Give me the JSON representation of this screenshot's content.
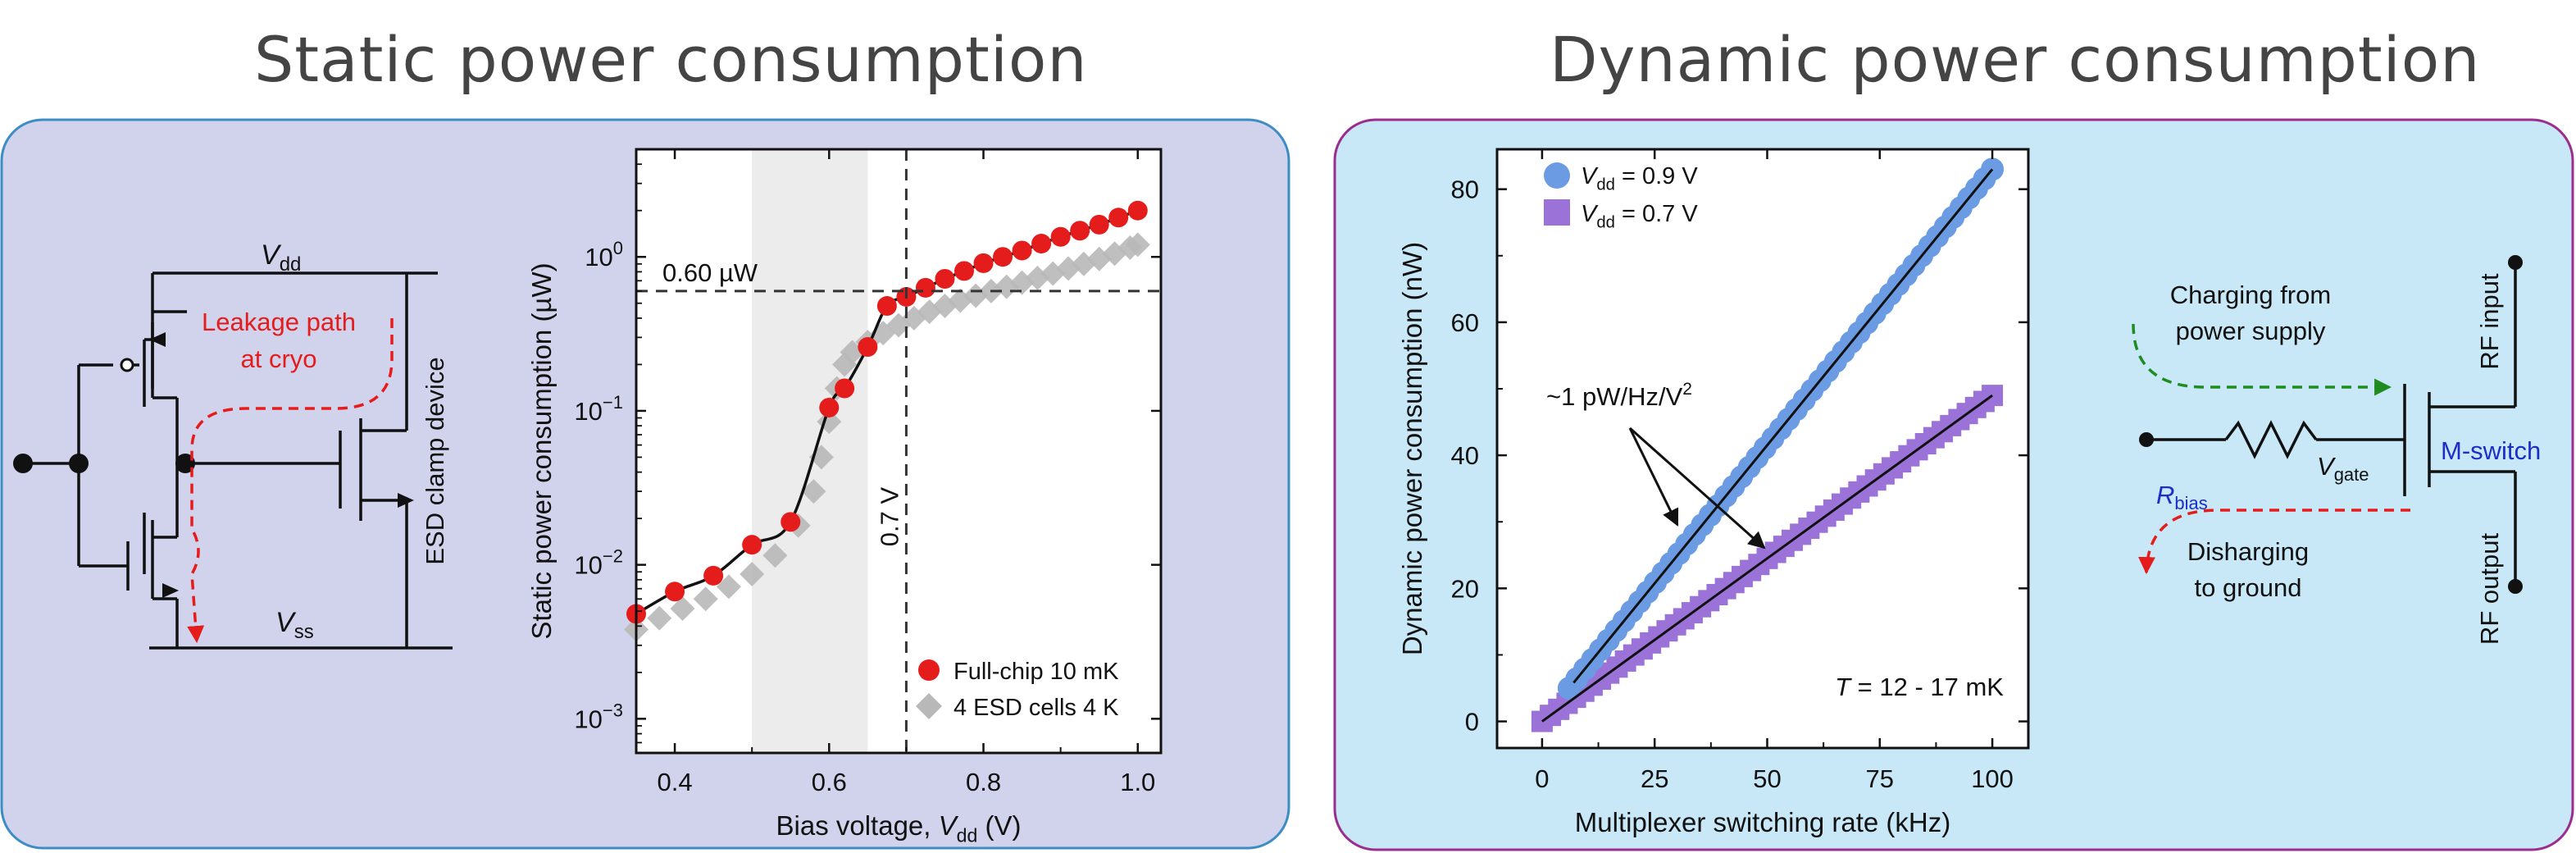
{
  "static": {
    "title": "Static power consumption",
    "colors": {
      "panel_bg": "#d1d3ec",
      "panel_border": "#3d8dc4",
      "red": "#e51c1c",
      "grey": "#b8b8b8",
      "shade": "#ececec"
    },
    "circuit": {
      "vdd_label": "V",
      "vdd_sub": "dd",
      "vss_label": "V",
      "vss_sub": "ss",
      "leakage_line1": "Leakage path",
      "leakage_line2": "at cryo",
      "esd_label": "ESD clamp device"
    },
    "annotations": {
      "power_line": "0.60 µW",
      "voltage_line": "0.7 V"
    }
  },
  "dynamic": {
    "title": "Dynamic power consumption",
    "colors": {
      "panel_bg": "#c8e8f8",
      "panel_border": "#9b2d8e",
      "blue": "#6b9be3",
      "purple": "#9b72d8"
    },
    "annotations": {
      "slope": "~1 pW/Hz/V",
      "slope_sup": "2",
      "temperature_italic": "T",
      "temperature_rest": " = 12 - 17 mK"
    },
    "switch": {
      "charging_line1": "Charging from",
      "charging_line2": "power supply",
      "discharging_line1": "Disharging",
      "discharging_line2": "to ground",
      "rf_input": "RF input",
      "rf_output": "RF output",
      "mswitch": "M-switch",
      "vgate_label": "V",
      "vgate_sub": "gate",
      "rbias_label": "R",
      "rbias_sub": "bias"
    }
  },
  "chart_data": [
    {
      "type": "scatter",
      "title": "",
      "xlabel": "Bias voltage, V_dd (V)",
      "ylabel": "Static power consumption (µW)",
      "xlabel_parts": [
        "Bias voltage, ",
        "V",
        "dd",
        " (V)"
      ],
      "yscale": "log",
      "xlim": [
        0.35,
        1.03
      ],
      "ylim": [
        0.0006,
        5
      ],
      "x_ticks": [
        0.4,
        0.6,
        0.8,
        1.0
      ],
      "x_tick_labels": [
        "0.4",
        "0.6",
        "0.8",
        "1.0"
      ],
      "y_ticks": [
        0.001,
        0.01,
        0.1,
        1
      ],
      "y_tick_labels": [
        [
          "10",
          "−3"
        ],
        [
          "10",
          "−2"
        ],
        [
          "10",
          "−1"
        ],
        [
          "10",
          "0"
        ]
      ],
      "shaded_region": [
        0.5,
        0.65
      ],
      "hline": 0.6,
      "vline": 0.7,
      "legend_position": "lower right",
      "series": [
        {
          "name": "Full-chip 10 mK",
          "marker": "circle",
          "x": [
            0.35,
            0.4,
            0.45,
            0.5,
            0.55,
            0.6,
            0.62,
            0.65,
            0.675,
            0.7,
            0.725,
            0.75,
            0.775,
            0.8,
            0.825,
            0.85,
            0.875,
            0.9,
            0.925,
            0.95,
            0.975,
            1.0
          ],
          "y": [
            0.0048,
            0.0067,
            0.0085,
            0.0135,
            0.019,
            0.105,
            0.14,
            0.26,
            0.48,
            0.55,
            0.63,
            0.72,
            0.81,
            0.91,
            1.0,
            1.1,
            1.22,
            1.35,
            1.48,
            1.62,
            1.8,
            2.0
          ]
        },
        {
          "name": "4 ESD cells 4 K",
          "marker": "diamond",
          "x": [
            0.35,
            0.38,
            0.41,
            0.44,
            0.47,
            0.5,
            0.53,
            0.56,
            0.58,
            0.59,
            0.6,
            0.61,
            0.62,
            0.63,
            0.65,
            0.67,
            0.69,
            0.71,
            0.73,
            0.75,
            0.77,
            0.79,
            0.81,
            0.83,
            0.85,
            0.87,
            0.89,
            0.91,
            0.93,
            0.95,
            0.97,
            0.99,
            1.0
          ],
          "y": [
            0.0038,
            0.0045,
            0.0052,
            0.006,
            0.0072,
            0.0087,
            0.0115,
            0.018,
            0.03,
            0.05,
            0.085,
            0.14,
            0.2,
            0.24,
            0.28,
            0.32,
            0.36,
            0.4,
            0.44,
            0.48,
            0.52,
            0.56,
            0.6,
            0.64,
            0.68,
            0.73,
            0.78,
            0.84,
            0.9,
            0.97,
            1.05,
            1.15,
            1.2
          ]
        }
      ]
    },
    {
      "type": "scatter",
      "title": "",
      "xlabel": "Multiplexer switching rate (kHz)",
      "ylabel": "Dynamic power consumption (nW)",
      "xlim": [
        -10,
        108
      ],
      "ylim": [
        -4,
        86
      ],
      "x_ticks": [
        0,
        25,
        50,
        75,
        100
      ],
      "y_ticks": [
        0,
        20,
        40,
        60,
        80
      ],
      "legend_position": "upper left",
      "series": [
        {
          "name": "V_dd = 0.9 V",
          "legend_parts": [
            "V",
            "dd",
            " = 0.9 V"
          ],
          "marker": "circle",
          "x_range": [
            6,
            100
          ],
          "count": 55,
          "slope": 0.83,
          "intercept": 0.0
        },
        {
          "name": "V_dd = 0.7 V",
          "legend_parts": [
            "V",
            "dd",
            " = 0.7 V"
          ],
          "marker": "square",
          "x_range": [
            0,
            100
          ],
          "count": 55,
          "slope": 0.49,
          "intercept": 0.0
        }
      ]
    }
  ]
}
